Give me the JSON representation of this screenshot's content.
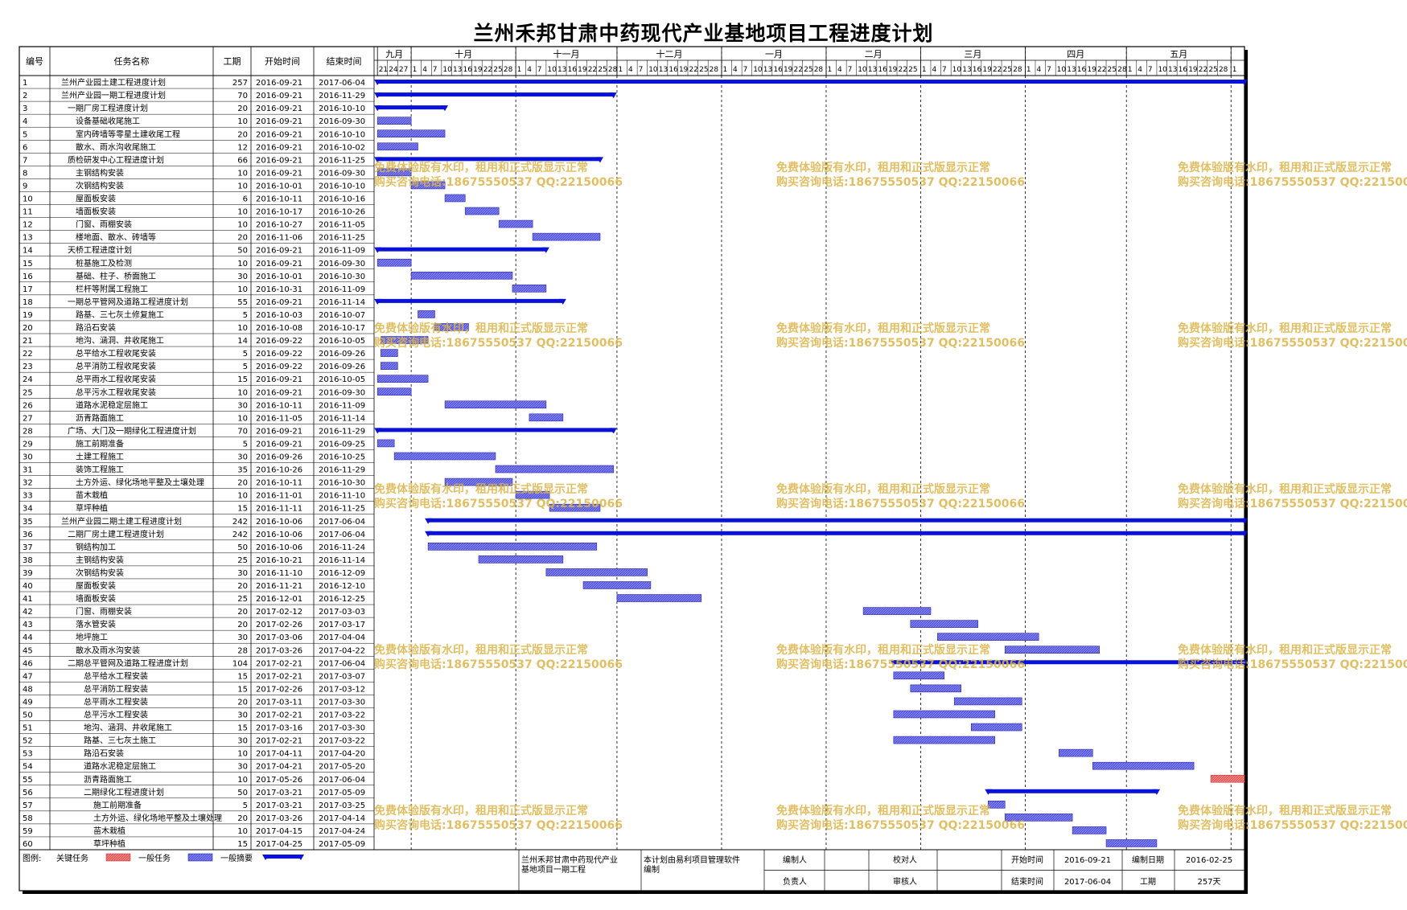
{
  "title": "兰州禾邦甘肃中药现代产业基地项目工程进度计划",
  "headers": {
    "id": "编号",
    "name": "任务名称",
    "dur": "工期",
    "start": "开始时间",
    "end": "结束时间"
  },
  "chart_data": {
    "type": "gantt",
    "months": [
      {
        "label": "九月",
        "start": "2016-09-21",
        "days": [
          "21",
          "24",
          "27"
        ]
      },
      {
        "label": "十月",
        "start": "2016-10-01",
        "days": [
          "1",
          "4",
          "7",
          "10",
          "13",
          "16",
          "19",
          "22",
          "25",
          "28"
        ]
      },
      {
        "label": "十一月",
        "start": "2016-11-01",
        "days": [
          "1",
          "4",
          "7",
          "10",
          "13",
          "16",
          "19",
          "22",
          "25",
          "28"
        ]
      },
      {
        "label": "十二月",
        "start": "2016-12-01",
        "days": [
          "1",
          "4",
          "7",
          "10",
          "13",
          "16",
          "19",
          "22",
          "25",
          "28"
        ]
      },
      {
        "label": "一月",
        "start": "2017-01-01",
        "days": [
          "1",
          "4",
          "7",
          "10",
          "13",
          "16",
          "19",
          "22",
          "25",
          "28"
        ]
      },
      {
        "label": "二月",
        "start": "2017-02-01",
        "days": [
          "1",
          "4",
          "7",
          "10",
          "13",
          "16",
          "19",
          "22",
          "25"
        ]
      },
      {
        "label": "三月",
        "start": "2017-03-01",
        "days": [
          "1",
          "4",
          "7",
          "10",
          "13",
          "16",
          "19",
          "22",
          "25",
          "28"
        ]
      },
      {
        "label": "四月",
        "start": "2017-04-01",
        "days": [
          "1",
          "4",
          "7",
          "10",
          "13",
          "16",
          "19",
          "22",
          "25",
          "28"
        ]
      },
      {
        "label": "五月",
        "start": "2017-05-01",
        "days": [
          "1",
          "4",
          "7",
          "10",
          "13",
          "16",
          "19",
          "22",
          "25",
          "28"
        ]
      },
      {
        "label": "",
        "start": "2017-06-01",
        "days": [
          "1"
        ]
      }
    ],
    "range": [
      "2016-09-21",
      "2017-06-05"
    ],
    "tasks": [
      {
        "id": "1",
        "name": "兰州产业园土建工程进度计划",
        "dur": "257",
        "start": "2016-09-21",
        "end": "2017-06-04",
        "kind": "summary",
        "indent": 0
      },
      {
        "id": "2",
        "name": "兰州产业园一期工程进度计划",
        "dur": "70",
        "start": "2016-09-21",
        "end": "2016-11-29",
        "kind": "summary",
        "indent": 0
      },
      {
        "id": "3",
        "name": "一期厂房工程进度计划",
        "dur": "20",
        "start": "2016-09-21",
        "end": "2016-10-10",
        "kind": "summary",
        "indent": 1
      },
      {
        "id": "4",
        "name": "设备基础收尾施工",
        "dur": "10",
        "start": "2016-09-21",
        "end": "2016-09-30",
        "kind": "task",
        "indent": 2
      },
      {
        "id": "5",
        "name": "室内砖墙等零星土建收尾工程",
        "dur": "20",
        "start": "2016-09-21",
        "end": "2016-10-10",
        "kind": "task",
        "indent": 2
      },
      {
        "id": "6",
        "name": "散水、雨水沟收尾施工",
        "dur": "12",
        "start": "2016-09-21",
        "end": "2016-10-02",
        "kind": "task",
        "indent": 2
      },
      {
        "id": "7",
        "name": "质检研发中心工程进度计划",
        "dur": "66",
        "start": "2016-09-21",
        "end": "2016-11-25",
        "kind": "summary",
        "indent": 1
      },
      {
        "id": "8",
        "name": "主钢结构安装",
        "dur": "10",
        "start": "2016-09-21",
        "end": "2016-09-30",
        "kind": "task",
        "indent": 2
      },
      {
        "id": "9",
        "name": "次钢结构安装",
        "dur": "10",
        "start": "2016-10-01",
        "end": "2016-10-10",
        "kind": "task",
        "indent": 2
      },
      {
        "id": "10",
        "name": "屋面板安装",
        "dur": "6",
        "start": "2016-10-11",
        "end": "2016-10-16",
        "kind": "task",
        "indent": 2
      },
      {
        "id": "11",
        "name": "墙面板安装",
        "dur": "10",
        "start": "2016-10-17",
        "end": "2016-10-26",
        "kind": "task",
        "indent": 2
      },
      {
        "id": "12",
        "name": "门窗、雨棚安装",
        "dur": "10",
        "start": "2016-10-27",
        "end": "2016-11-05",
        "kind": "task",
        "indent": 2
      },
      {
        "id": "13",
        "name": "楼地面、散水、砖墙等",
        "dur": "20",
        "start": "2016-11-06",
        "end": "2016-11-25",
        "kind": "task",
        "indent": 2
      },
      {
        "id": "14",
        "name": "天桥工程进度计划",
        "dur": "50",
        "start": "2016-09-21",
        "end": "2016-11-09",
        "kind": "summary",
        "indent": 1
      },
      {
        "id": "15",
        "name": "桩基施工及检测",
        "dur": "10",
        "start": "2016-09-21",
        "end": "2016-09-30",
        "kind": "task",
        "indent": 2
      },
      {
        "id": "16",
        "name": "基础、柱子、桥面施工",
        "dur": "30",
        "start": "2016-10-01",
        "end": "2016-10-30",
        "kind": "task",
        "indent": 2
      },
      {
        "id": "17",
        "name": "栏杆等附属工程施工",
        "dur": "10",
        "start": "2016-10-31",
        "end": "2016-11-09",
        "kind": "task",
        "indent": 2
      },
      {
        "id": "18",
        "name": "一期总平管网及道路工程进度计划",
        "dur": "55",
        "start": "2016-09-21",
        "end": "2016-11-14",
        "kind": "summary",
        "indent": 1
      },
      {
        "id": "19",
        "name": "路基、三七灰土修复施工",
        "dur": "5",
        "start": "2016-10-03",
        "end": "2016-10-07",
        "kind": "task",
        "indent": 2
      },
      {
        "id": "20",
        "name": "路沿石安装",
        "dur": "10",
        "start": "2016-10-08",
        "end": "2016-10-17",
        "kind": "task",
        "indent": 2
      },
      {
        "id": "21",
        "name": "地沟、涵洞、井收尾施工",
        "dur": "14",
        "start": "2016-09-22",
        "end": "2016-10-05",
        "kind": "task",
        "indent": 2
      },
      {
        "id": "22",
        "name": "总平给水工程收尾安装",
        "dur": "5",
        "start": "2016-09-22",
        "end": "2016-09-26",
        "kind": "task",
        "indent": 2
      },
      {
        "id": "23",
        "name": "总平消防工程收尾安装",
        "dur": "5",
        "start": "2016-09-22",
        "end": "2016-09-26",
        "kind": "task",
        "indent": 2
      },
      {
        "id": "24",
        "name": "总平雨水工程收尾安装",
        "dur": "15",
        "start": "2016-09-21",
        "end": "2016-10-05",
        "kind": "task",
        "indent": 2
      },
      {
        "id": "25",
        "name": "总平污水工程收尾安装",
        "dur": "10",
        "start": "2016-09-21",
        "end": "2016-09-30",
        "kind": "task",
        "indent": 2
      },
      {
        "id": "26",
        "name": "道路水泥稳定层施工",
        "dur": "30",
        "start": "2016-10-11",
        "end": "2016-11-09",
        "kind": "task",
        "indent": 2
      },
      {
        "id": "27",
        "name": "沥青路面施工",
        "dur": "10",
        "start": "2016-11-05",
        "end": "2016-11-14",
        "kind": "task",
        "indent": 2
      },
      {
        "id": "28",
        "name": "广场、大门及一期绿化工程进度计划",
        "dur": "70",
        "start": "2016-09-21",
        "end": "2016-11-29",
        "kind": "summary",
        "indent": 1
      },
      {
        "id": "29",
        "name": "施工前期准备",
        "dur": "5",
        "start": "2016-09-21",
        "end": "2016-09-25",
        "kind": "task",
        "indent": 2
      },
      {
        "id": "30",
        "name": "土建工程施工",
        "dur": "30",
        "start": "2016-09-26",
        "end": "2016-10-25",
        "kind": "task",
        "indent": 2
      },
      {
        "id": "31",
        "name": "装饰工程施工",
        "dur": "35",
        "start": "2016-10-26",
        "end": "2016-11-29",
        "kind": "task",
        "indent": 2
      },
      {
        "id": "32",
        "name": "土方外运、绿化场地平整及土壤处理",
        "dur": "20",
        "start": "2016-10-11",
        "end": "2016-10-30",
        "kind": "task",
        "indent": 2
      },
      {
        "id": "33",
        "name": "苗木栽植",
        "dur": "10",
        "start": "2016-11-01",
        "end": "2016-11-10",
        "kind": "task",
        "indent": 2
      },
      {
        "id": "34",
        "name": "草坪种植",
        "dur": "15",
        "start": "2016-11-11",
        "end": "2016-11-25",
        "kind": "task",
        "indent": 2
      },
      {
        "id": "35",
        "name": "兰州产业园二期土建工程进度计划",
        "dur": "242",
        "start": "2016-10-06",
        "end": "2017-06-04",
        "kind": "summary",
        "indent": 0
      },
      {
        "id": "36",
        "name": "二期厂房土建工程进度计划",
        "dur": "242",
        "start": "2016-10-06",
        "end": "2017-06-04",
        "kind": "summary",
        "indent": 1
      },
      {
        "id": "37",
        "name": "钢结构加工",
        "dur": "50",
        "start": "2016-10-06",
        "end": "2016-11-24",
        "kind": "task",
        "indent": 2
      },
      {
        "id": "38",
        "name": "主钢结构安装",
        "dur": "25",
        "start": "2016-10-21",
        "end": "2016-11-14",
        "kind": "task",
        "indent": 2
      },
      {
        "id": "39",
        "name": "次钢结构安装",
        "dur": "30",
        "start": "2016-11-10",
        "end": "2016-12-09",
        "kind": "task",
        "indent": 2
      },
      {
        "id": "40",
        "name": "屋面板安装",
        "dur": "20",
        "start": "2016-11-21",
        "end": "2016-12-10",
        "kind": "task",
        "indent": 2
      },
      {
        "id": "41",
        "name": "墙面板安装",
        "dur": "25",
        "start": "2016-12-01",
        "end": "2016-12-25",
        "kind": "task",
        "indent": 2
      },
      {
        "id": "42",
        "name": "门窗、雨棚安装",
        "dur": "20",
        "start": "2017-02-12",
        "end": "2017-03-03",
        "kind": "task",
        "indent": 2
      },
      {
        "id": "43",
        "name": "落水管安装",
        "dur": "20",
        "start": "2017-02-26",
        "end": "2017-03-17",
        "kind": "task",
        "indent": 2
      },
      {
        "id": "44",
        "name": "地坪施工",
        "dur": "30",
        "start": "2017-03-06",
        "end": "2017-04-04",
        "kind": "task",
        "indent": 2
      },
      {
        "id": "45",
        "name": "散水及雨水沟安装",
        "dur": "28",
        "start": "2017-03-26",
        "end": "2017-04-22",
        "kind": "task",
        "indent": 2
      },
      {
        "id": "46",
        "name": "二期总平管网及道路工程进度计划",
        "dur": "104",
        "start": "2017-02-21",
        "end": "2017-06-04",
        "kind": "summary",
        "indent": 1
      },
      {
        "id": "47",
        "name": "总平给水工程安装",
        "dur": "15",
        "start": "2017-02-21",
        "end": "2017-03-07",
        "kind": "task",
        "indent": 3
      },
      {
        "id": "48",
        "name": "总平消防工程安装",
        "dur": "15",
        "start": "2017-02-26",
        "end": "2017-03-12",
        "kind": "task",
        "indent": 3
      },
      {
        "id": "49",
        "name": "总平雨水工程安装",
        "dur": "20",
        "start": "2017-03-11",
        "end": "2017-03-30",
        "kind": "task",
        "indent": 3
      },
      {
        "id": "50",
        "name": "总平污水工程安装",
        "dur": "30",
        "start": "2017-02-21",
        "end": "2017-03-22",
        "kind": "task",
        "indent": 3
      },
      {
        "id": "51",
        "name": "地沟、涵洞、井收尾施工",
        "dur": "15",
        "start": "2017-03-16",
        "end": "2017-03-30",
        "kind": "task",
        "indent": 3
      },
      {
        "id": "52",
        "name": "路基、三七灰土施工",
        "dur": "30",
        "start": "2017-02-21",
        "end": "2017-03-22",
        "kind": "task",
        "indent": 3
      },
      {
        "id": "53",
        "name": "路沿石安装",
        "dur": "10",
        "start": "2017-04-11",
        "end": "2017-04-20",
        "kind": "task",
        "indent": 3
      },
      {
        "id": "54",
        "name": "道路水泥稳定层施工",
        "dur": "30",
        "start": "2017-04-21",
        "end": "2017-05-20",
        "kind": "task",
        "indent": 3
      },
      {
        "id": "55",
        "name": "沥青路面施工",
        "dur": "10",
        "start": "2017-05-26",
        "end": "2017-06-04",
        "kind": "critical",
        "indent": 3
      },
      {
        "id": "56",
        "name": "二期绿化工程进度计划",
        "dur": "50",
        "start": "2017-03-21",
        "end": "2017-05-09",
        "kind": "summary",
        "indent": 3
      },
      {
        "id": "57",
        "name": "施工前期准备",
        "dur": "5",
        "start": "2017-03-21",
        "end": "2017-03-25",
        "kind": "task",
        "indent": 4
      },
      {
        "id": "58",
        "name": "土方外运、绿化场地平整及土壤处理",
        "dur": "20",
        "start": "2017-03-26",
        "end": "2017-04-14",
        "kind": "task",
        "indent": 4
      },
      {
        "id": "59",
        "name": "苗木栽植",
        "dur": "10",
        "start": "2017-04-15",
        "end": "2017-04-24",
        "kind": "task",
        "indent": 4
      },
      {
        "id": "60",
        "name": "草坪种植",
        "dur": "15",
        "start": "2017-04-25",
        "end": "2017-05-09",
        "kind": "task",
        "indent": 4
      }
    ]
  },
  "watermark": {
    "line1": "免费体验版有水印，租用和正式版显示正常",
    "line2": "购买咨询电话:18675550537 QQ:22150066"
  },
  "legend": {
    "label": "图例:",
    "critical": "关键任务",
    "task": "一般任务",
    "summary": "一般摘要"
  },
  "footer": {
    "project": "兰州禾邦甘肃中药现代产业基地项目一期工程",
    "software": "本计划由易利项目管理软件编制",
    "compiler_label": "编制人",
    "owner_label": "负责人",
    "checker_label": "校对人",
    "reviewer_label": "审核人",
    "start_label": "开始时间",
    "start_value": "2016-09-21",
    "end_label": "结束时间",
    "end_value": "2017-06-04",
    "date_label": "编制日期",
    "date_value": "2016-02-25",
    "duration_label": "工期",
    "duration_value": "257天"
  },
  "colors": {
    "task": "#7b7bf0",
    "summary": "#0a12d8",
    "critical": "#f08080",
    "critical_text": "#e02020",
    "grid": "#000000"
  }
}
